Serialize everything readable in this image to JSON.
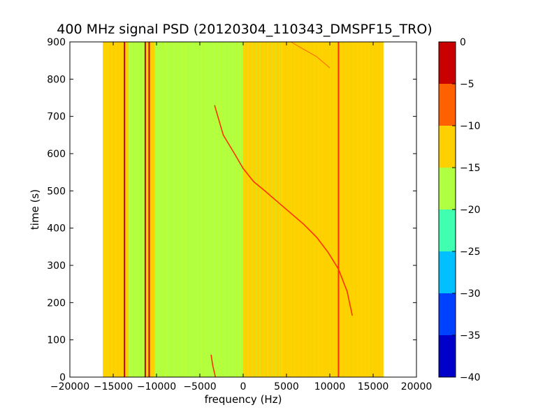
{
  "chart_data": {
    "type": "heatmap",
    "title": "400 MHz signal PSD (20120304_110343_DMSPF15_TRO)",
    "xlabel": "frequency (Hz)",
    "ylabel": "time (s)",
    "xlim": [
      -20000,
      20000
    ],
    "ylim": [
      0,
      900
    ],
    "xticks": [
      -20000,
      -15000,
      -10000,
      -5000,
      0,
      5000,
      10000,
      15000,
      20000
    ],
    "xtick_labels": [
      "−20000",
      "−15000",
      "−10000",
      "−5000",
      "0",
      "5000",
      "10000",
      "15000",
      "20000"
    ],
    "yticks": [
      0,
      100,
      200,
      300,
      400,
      500,
      600,
      700,
      800,
      900
    ],
    "ytick_labels": [
      "0",
      "100",
      "200",
      "300",
      "400",
      "500",
      "600",
      "700",
      "800",
      "900"
    ],
    "data_extent": {
      "x": [
        -16200,
        16200
      ],
      "y": [
        0,
        900
      ]
    },
    "colorbar": {
      "levels": [
        -40,
        -35,
        -30,
        -25,
        -20,
        -15,
        -10,
        -5,
        0
      ],
      "labels": [
        "−40",
        "−35",
        "−30",
        "−25",
        "−20",
        "−15",
        "−10",
        "−5",
        "0"
      ],
      "colors": [
        "#0000c8",
        "#0040ff",
        "#00c0ff",
        "#40ffb0",
        "#b0ff40",
        "#ffd000",
        "#ff6000",
        "#c80000"
      ]
    },
    "regions": [
      {
        "x0": -16200,
        "x1": -13200,
        "level": "-15 to -10",
        "color": "#ffd000"
      },
      {
        "x0": -13200,
        "x1": -11200,
        "level": "-20 to -15",
        "color": "#b0ff40"
      },
      {
        "x0": -11200,
        "x1": -10200,
        "level": "-15 to -10",
        "color": "#ffd000"
      },
      {
        "x0": -10200,
        "x1": 0,
        "level": "-20 to -15",
        "color": "#b0ff40"
      },
      {
        "x0": 0,
        "x1": 4500,
        "level": "mixed -20 to -10",
        "color": "#ffd000"
      },
      {
        "x0": 4500,
        "x1": 16200,
        "level": "-15 to -10",
        "color": "#ffd000"
      }
    ],
    "vertical_lines": [
      {
        "x": -13700,
        "y0": 0,
        "y1": 900,
        "level": "-5 to 0",
        "color": "#c80000"
      },
      {
        "x": -11300,
        "y0": 0,
        "y1": 900,
        "level": "-5 to 0",
        "color": "#c80000"
      },
      {
        "x": -10850,
        "y0": 0,
        "y1": 900,
        "level": "-5 to 0",
        "color": "#c80000"
      },
      {
        "x": 11000,
        "y0": 0,
        "y1": 900,
        "level": "-5 to 0",
        "color": "#ff3000"
      }
    ],
    "signal_curve": {
      "x": [
        -3300,
        -2300,
        -1000,
        0,
        1200,
        2500,
        4000,
        5500,
        7000,
        8500,
        9800,
        11000,
        12000,
        12600
      ],
      "y": [
        730,
        650,
        600,
        560,
        525,
        500,
        470,
        440,
        410,
        375,
        335,
        290,
        230,
        165
      ],
      "color": "#ff3000"
    },
    "signal_curve_lower": {
      "x": [
        -3700,
        -3500,
        -3200
      ],
      "y": [
        60,
        30,
        0
      ],
      "color": "#ff3000"
    },
    "signal_curve_upper": {
      "x": [
        5500,
        7000,
        8500,
        10000
      ],
      "y": [
        900,
        880,
        860,
        830
      ],
      "color": "#ff6000"
    }
  }
}
